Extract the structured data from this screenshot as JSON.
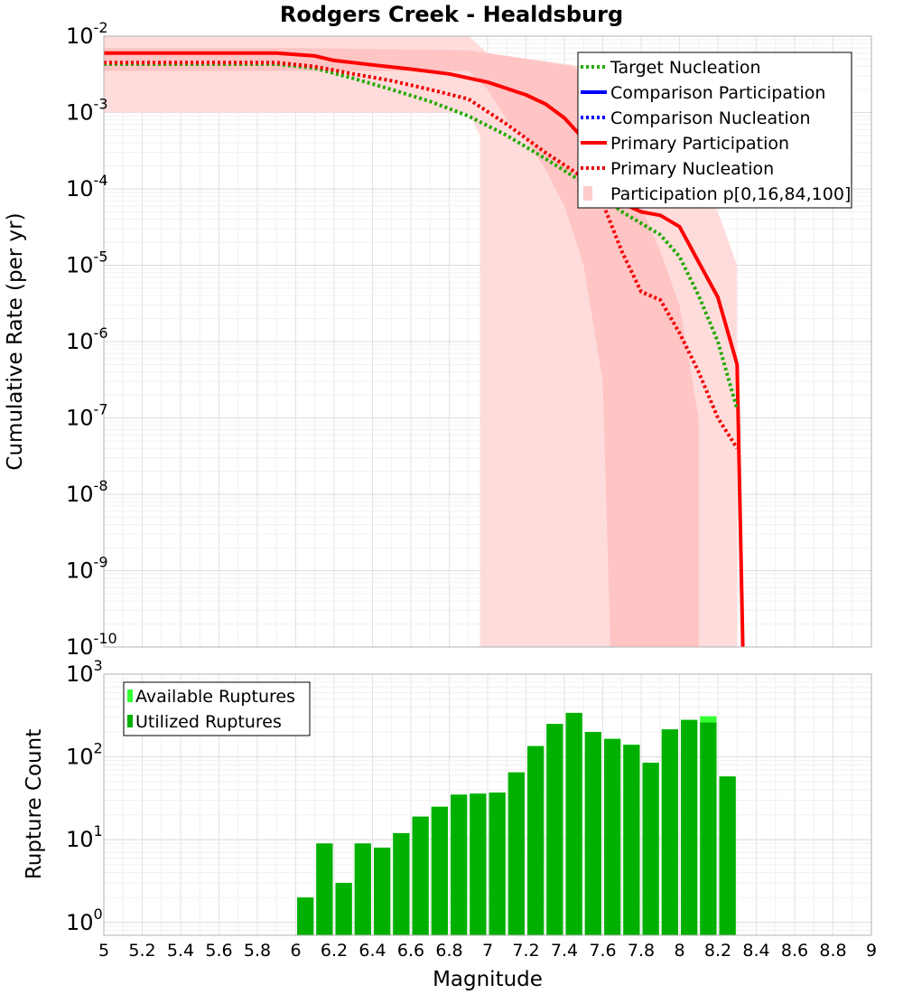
{
  "title": "Rodgers Creek - Healdsburg",
  "chart_data": [
    {
      "type": "line",
      "xlabel": "",
      "ylabel": "Cumulative Rate (per yr)",
      "xlim": [
        5,
        9
      ],
      "ylim": [
        1e-10,
        0.01
      ],
      "yscale": "log",
      "grid": true,
      "legend_placement": "top-right",
      "y_ticks": [
        {
          "base": "10",
          "exp": "-2",
          "value": 0.01
        },
        {
          "base": "10",
          "exp": "-3",
          "value": 0.001
        },
        {
          "base": "10",
          "exp": "-4",
          "value": 0.0001
        },
        {
          "base": "10",
          "exp": "-5",
          "value": 1e-05
        },
        {
          "base": "10",
          "exp": "-6",
          "value": 1e-06
        },
        {
          "base": "10",
          "exp": "-7",
          "value": 1e-07
        },
        {
          "base": "10",
          "exp": "-8",
          "value": 1e-08
        },
        {
          "base": "10",
          "exp": "-9",
          "value": 1e-09
        },
        {
          "base": "10",
          "exp": "-10",
          "value": 1e-10
        }
      ],
      "legend": [
        {
          "label": "Target Nucleation",
          "color": "#22aa00",
          "style": "dotted"
        },
        {
          "label": "Comparison Participation",
          "color": "#0000ff",
          "style": "solid"
        },
        {
          "label": "Comparison Nucleation",
          "color": "#0000ff",
          "style": "dotted"
        },
        {
          "label": "Primary Participation",
          "color": "#ff0000",
          "style": "solid"
        },
        {
          "label": "Primary Nucleation",
          "color": "#ee0000",
          "style": "dotted"
        },
        {
          "label": "Participation p[0,16,84,100]",
          "color": "#ffcccc",
          "style": "band"
        }
      ],
      "series": [
        {
          "name": "Primary Participation",
          "color": "#ff0000",
          "style": "solid",
          "x": [
            5.0,
            5.9,
            6.1,
            6.2,
            6.4,
            6.6,
            6.8,
            7.0,
            7.2,
            7.3,
            7.4,
            7.5,
            7.6,
            7.7,
            7.8,
            7.9,
            8.0,
            8.1,
            8.2,
            8.3,
            8.33
          ],
          "y": [
            0.006,
            0.006,
            0.0055,
            0.0048,
            0.0042,
            0.0037,
            0.0032,
            0.0025,
            0.0017,
            0.0013,
            0.00085,
            0.00045,
            0.00015,
            6.5e-05,
            5e-05,
            4.5e-05,
            3.2e-05,
            1.1e-05,
            3.8e-06,
            5e-07,
            1e-10
          ]
        },
        {
          "name": "Primary Nucleation",
          "color": "#ee0000",
          "style": "dotted",
          "x": [
            5.0,
            5.9,
            6.1,
            6.3,
            6.5,
            6.7,
            6.9,
            7.1,
            7.3,
            7.5,
            7.6,
            7.7,
            7.8,
            7.9,
            8.0,
            8.1,
            8.2,
            8.3
          ],
          "y": [
            0.0045,
            0.0045,
            0.004,
            0.0032,
            0.0026,
            0.002,
            0.0015,
            0.0007,
            0.0003,
            0.00014,
            6.5e-05,
            1.5e-05,
            4.5e-06,
            3.5e-06,
            1.3e-06,
            4e-07,
            1e-07,
            4e-08
          ]
        },
        {
          "name": "Target Nucleation",
          "color": "#22aa00",
          "style": "dotted",
          "x": [
            5.0,
            5.9,
            6.1,
            6.3,
            6.5,
            6.7,
            6.9,
            7.1,
            7.3,
            7.5,
            7.7,
            7.9,
            8.0,
            8.1,
            8.2,
            8.3
          ],
          "y": [
            0.0043,
            0.0043,
            0.0038,
            0.0028,
            0.002,
            0.0014,
            0.0009,
            0.0005,
            0.00025,
            0.00012,
            5e-05,
            2.5e-05,
            1.3e-05,
            4e-06,
            1e-06,
            1.3e-07
          ]
        }
      ],
      "band_outer": {
        "label": "Participation p[0,16,84,100]",
        "x": [
          5.0,
          6.0,
          6.9,
          7.0,
          7.5,
          7.6,
          7.8,
          8.0,
          8.1,
          8.2,
          8.3,
          8.3,
          8.24,
          8.0,
          7.6,
          7.3,
          7.0,
          6.96,
          6.96,
          6.9,
          6.0,
          5.0
        ],
        "y": [
          0.01,
          0.01,
          0.01,
          0.006,
          0.004,
          0.002,
          0.0006,
          0.0002,
          0.00012,
          5e-05,
          1e-05,
          1e-10,
          1e-10,
          1e-10,
          1e-10,
          1e-10,
          1e-10,
          1e-10,
          0.0005,
          0.001,
          0.001,
          0.001
        ]
      },
      "band_inner": {
        "x": [
          5.0,
          6.0,
          6.9,
          7.2,
          7.45,
          7.5,
          7.6,
          7.7,
          7.8,
          7.9,
          8.0,
          8.1,
          8.1,
          7.7,
          7.64,
          7.6,
          7.5,
          7.4,
          7.3,
          7.2,
          7.1,
          7.0,
          6.9,
          6.0,
          5.0
        ],
        "y": [
          0.007,
          0.007,
          0.0065,
          0.005,
          0.004,
          0.003,
          0.0015,
          0.0002,
          6e-05,
          1.5e-05,
          3e-06,
          1e-07,
          1e-10,
          1e-10,
          1e-10,
          3e-07,
          1e-05,
          6e-05,
          0.00018,
          0.00045,
          0.0008,
          0.002,
          0.0035,
          0.0035,
          0.0035
        ]
      }
    },
    {
      "type": "bar",
      "xlabel": "Magnitude",
      "ylabel": "Rupture Count",
      "xlim": [
        5,
        9
      ],
      "ylim": [
        0.7,
        1000
      ],
      "yscale": "log",
      "grid": true,
      "legend_placement": "top-left",
      "x_ticks": [
        "5",
        "5.2",
        "5.4",
        "5.6",
        "5.8",
        "6",
        "6.2",
        "6.4",
        "6.6",
        "6.8",
        "7",
        "7.2",
        "7.4",
        "7.6",
        "7.8",
        "8",
        "8.2",
        "8.4",
        "8.6",
        "8.8",
        "9"
      ],
      "y_ticks": [
        {
          "base": "10",
          "exp": "3",
          "value": 1000
        },
        {
          "base": "10",
          "exp": "2",
          "value": 100
        },
        {
          "base": "10",
          "exp": "1",
          "value": 10
        },
        {
          "base": "10",
          "exp": "0",
          "value": 1
        }
      ],
      "legend": [
        {
          "label": "Available Ruptures",
          "color": "#33ff33"
        },
        {
          "label": "Utilized Ruptures",
          "color": "#00b000"
        }
      ],
      "bin_width": 0.1,
      "bin_centers": [
        6.05,
        6.15,
        6.25,
        6.35,
        6.45,
        6.55,
        6.65,
        6.75,
        6.85,
        6.95,
        7.05,
        7.15,
        7.25,
        7.35,
        7.45,
        7.55,
        7.65,
        7.75,
        7.85,
        7.95,
        8.05,
        8.15,
        8.25
      ],
      "series": [
        {
          "name": "Available Ruptures",
          "color": "#33ff33",
          "values": [
            2,
            9,
            3,
            9,
            8,
            12,
            19,
            25,
            35,
            36,
            37,
            65,
            135,
            250,
            340,
            200,
            165,
            140,
            85,
            215,
            280,
            310,
            58
          ]
        },
        {
          "name": "Utilized Ruptures",
          "color": "#00b000",
          "values": [
            2,
            9,
            3,
            9,
            8,
            12,
            19,
            25,
            35,
            36,
            37,
            65,
            135,
            250,
            340,
            200,
            165,
            140,
            85,
            215,
            280,
            260,
            58
          ]
        }
      ]
    }
  ]
}
